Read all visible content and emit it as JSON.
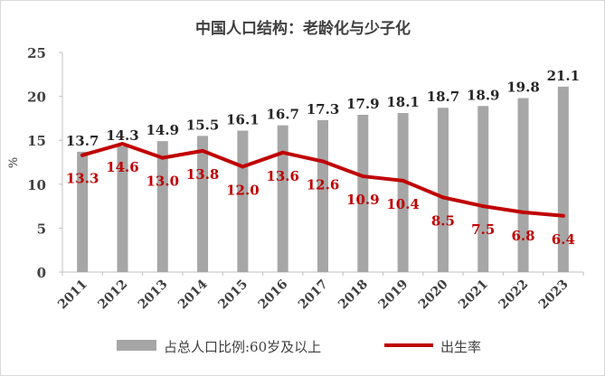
{
  "chart_data": {
    "type": "bar+line",
    "title": "中国人口结构：老龄化与少子化",
    "ylabel": "%",
    "ylim": [
      0,
      25
    ],
    "yticks": [
      0,
      5,
      10,
      15,
      20,
      25
    ],
    "grid": false,
    "legend_position": "bottom",
    "categories": [
      "2011",
      "2012",
      "2013",
      "2014",
      "2015",
      "2016",
      "2017",
      "2018",
      "2019",
      "2020",
      "2021",
      "2022",
      "2023"
    ],
    "series": [
      {
        "name": "占总人口比例:60岁及以上",
        "type": "bar",
        "color": "#a6a6a6",
        "label_color": "#262626",
        "values": [
          13.7,
          14.3,
          14.9,
          15.5,
          16.1,
          16.7,
          17.3,
          17.9,
          18.1,
          18.7,
          18.9,
          19.8,
          21.1
        ]
      },
      {
        "name": "出生率",
        "type": "line",
        "color": "#c00000",
        "label_color": "#c00000",
        "values": [
          13.3,
          14.6,
          13.0,
          13.8,
          12.0,
          13.6,
          12.6,
          10.9,
          10.4,
          8.5,
          7.5,
          6.8,
          6.4
        ]
      }
    ]
  }
}
